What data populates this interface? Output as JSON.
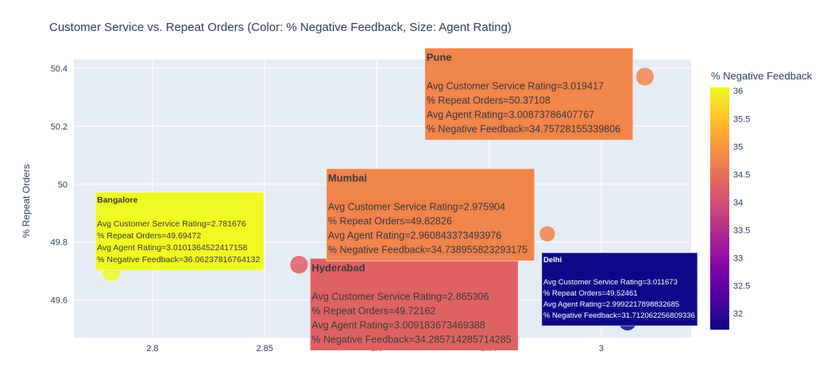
{
  "chart_data": {
    "type": "scatter",
    "title": "Customer Service vs. Repeat Orders (Color: % Negative Feedback, Size: Agent Rating)",
    "xlabel": "",
    "ylabel": "% Repeat Orders",
    "colorbar_title": "% Negative Feedback",
    "xlim": [
      2.765,
      3.04
    ],
    "ylim": [
      49.47,
      50.43
    ],
    "x_ticks": [
      2.8,
      2.85,
      2.9,
      2.95,
      3
    ],
    "x_tick_labels": [
      "2.8",
      "2.85",
      "2.9",
      "2.95",
      "3"
    ],
    "y_ticks": [
      49.6,
      49.8,
      50,
      50.2,
      50.4
    ],
    "y_tick_labels": [
      "49.6",
      "49.8",
      "50",
      "50.2",
      "50.4"
    ],
    "color_range": [
      31.71,
      36.06
    ],
    "colorbar_ticks": [
      32,
      32.5,
      33,
      33.5,
      34,
      34.5,
      35,
      35.5,
      36
    ],
    "colorbar_tick_labels": [
      "32",
      "32.5",
      "33",
      "33.5",
      "34",
      "34.5",
      "35",
      "35.5",
      "36"
    ],
    "grid": true,
    "points": [
      {
        "name": "Bangalore",
        "x": 2.781676,
        "y": 49.69472,
        "size": 3.0101364522417158,
        "color_value": 36.06237816764132,
        "hover": [
          "Avg Customer Service Rating=2.781676",
          "% Repeat Orders=49.69472",
          "Avg Agent Rating=3.0101364522417158",
          "% Negative Feedback=36.06237816764132"
        ]
      },
      {
        "name": "Delhi",
        "x": 3.011673,
        "y": 49.52461,
        "size": 2.9992217898832685,
        "color_value": 31.712062256809336,
        "hover": [
          "Avg Customer Service Rating=3.011673",
          "% Repeat Orders=49.52461",
          "Avg Agent Rating=2.9992217898832685",
          "% Negative Feedback=31.712062256809336"
        ]
      },
      {
        "name": "Hyderabad",
        "x": 2.865306,
        "y": 49.72162,
        "size": 3.009183673469388,
        "color_value": 34.285714285714285,
        "hover": [
          "Avg Customer Service Rating=2.865306",
          "% Repeat Orders=49.72162",
          "Avg Agent Rating=3.009183673469388",
          "% Negative Feedback=34.285714285714285"
        ]
      },
      {
        "name": "Mumbai",
        "x": 2.975904,
        "y": 49.82826,
        "size": 2.960843373493976,
        "color_value": 34.738955823293175,
        "hover": [
          "Avg Customer Service Rating=2.975904",
          "% Repeat Orders=49.82826",
          "Avg Agent Rating=2.960843373493976",
          "% Negative Feedback=34.738955823293175"
        ]
      },
      {
        "name": "Pune",
        "x": 3.019417,
        "y": 50.37108,
        "size": 3.00873786407767,
        "color_value": 34.75728155339806,
        "hover": [
          "Avg Customer Service Rating=3.019417",
          "% Repeat Orders=50.37108",
          "Avg Agent Rating=3.00873786407767",
          "% Negative Feedback=34.75728155339806"
        ]
      }
    ]
  }
}
